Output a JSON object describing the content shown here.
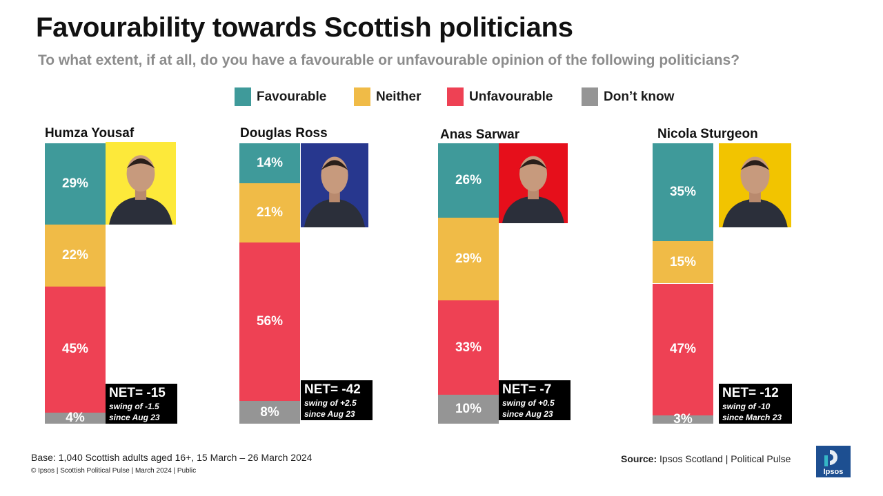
{
  "title": "Favourability towards Scottish politicians",
  "subtitle": "To what extent, if at all, do you have a favourable or unfavourable opinion of the following politicians?",
  "legend": [
    {
      "label": "Favourable",
      "color": "#3f9a9a"
    },
    {
      "label": "Neither",
      "color": "#f0bb47"
    },
    {
      "label": "Unfavourable",
      "color": "#ee4154"
    },
    {
      "label": "Don’t know",
      "color": "#959595"
    }
  ],
  "politicians": [
    {
      "name": "Humza Yousaf",
      "photo_bg": "#fde93a",
      "net": "NET= -15",
      "swing_line1": "swing of -1.5",
      "swing_line2": "since Aug 23"
    },
    {
      "name": "Douglas Ross",
      "photo_bg": "#27378e",
      "net": "NET= -42",
      "swing_line1": "swing of +2.5",
      "swing_line2": "since Aug 23"
    },
    {
      "name": "Anas Sarwar",
      "photo_bg": "#e60f1b",
      "net": "NET= -7",
      "swing_line1": "swing of +0.5",
      "swing_line2": "since Aug 23"
    },
    {
      "name": "Nicola Sturgeon",
      "photo_bg": "#f2c400",
      "net": "NET= -12",
      "swing_line1": "swing of -10",
      "swing_line2": "since March 23"
    }
  ],
  "chart_data": {
    "type": "bar",
    "stacked": true,
    "unit": "%",
    "categories": [
      "Humza Yousaf",
      "Douglas Ross",
      "Anas Sarwar",
      "Nicola Sturgeon"
    ],
    "series": [
      {
        "name": "Favourable",
        "values": [
          29,
          14,
          26,
          35
        ],
        "labels": [
          "29%",
          "14%",
          "26%",
          "35%"
        ],
        "color": "#3f9a9a"
      },
      {
        "name": "Neither",
        "values": [
          22,
          21,
          29,
          15
        ],
        "labels": [
          "22%",
          "21%",
          "29%",
          "15%"
        ],
        "color": "#f0bb47"
      },
      {
        "name": "Unfavourable",
        "values": [
          45,
          56,
          33,
          47
        ],
        "labels": [
          "45%",
          "56%",
          "33%",
          "47%"
        ],
        "color": "#ee4154"
      },
      {
        "name": "Don’t know",
        "values": [
          4,
          8,
          10,
          3
        ],
        "labels": [
          "4%",
          "8%",
          "10%",
          "3%"
        ],
        "color": "#959595"
      }
    ]
  },
  "footer": {
    "base": "Base: 1,040 Scottish adults aged 16+, 15 March – 26 March 2024",
    "copyright": "© Ipsos | Scottish Political Pulse | March 2024 | Public",
    "source_label": "Source:",
    "source_text": " Ipsos Scotland | Political Pulse",
    "logo_text": "Ipsos"
  }
}
